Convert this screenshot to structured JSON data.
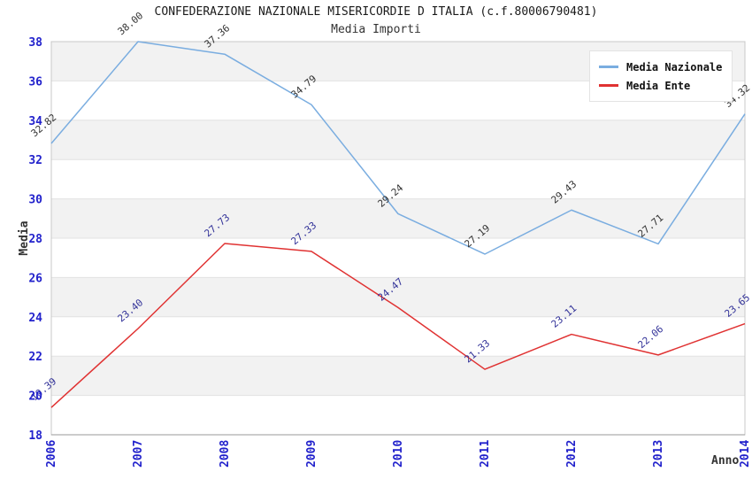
{
  "title": "CONFEDERAZIONE NAZIONALE MISERICORDIE D ITALIA (c.f.80006790481)",
  "subtitle": "Media Importi",
  "chart_data": {
    "type": "line",
    "title": "CONFEDERAZIONE NAZIONALE MISERICORDIE D ITALIA (c.f.80006790481)",
    "subtitle": "Media Importi",
    "xlabel": "Anno",
    "ylabel": "Media",
    "ylim": [
      18,
      38
    ],
    "ytick_step": 2,
    "grid": "horizontal-bands-alternating",
    "legend_position": "top-right-inside",
    "categories": [
      "2006",
      "2007",
      "2008",
      "2009",
      "2010",
      "2011",
      "2012",
      "2013",
      "2014"
    ],
    "series": [
      {
        "name": "Media Nazionale",
        "color": "#7aade0",
        "label_color": "#333333",
        "values": [
          32.82,
          38.0,
          37.36,
          34.79,
          29.24,
          27.19,
          29.43,
          27.71,
          34.32
        ]
      },
      {
        "name": "Media Ente",
        "color": "#e03232",
        "label_color": "#333399",
        "values": [
          19.39,
          23.4,
          27.73,
          27.33,
          24.47,
          21.33,
          23.11,
          22.06,
          23.65
        ]
      }
    ],
    "colors": {
      "band_gray": "#f2f2f2",
      "band_white": "#ffffff",
      "gridline": "#e2e2e2",
      "plot_border": "#c8c8c8",
      "bottom_axis": "#999999",
      "tick_label": "#2222cc",
      "axis_title": "#333333"
    }
  }
}
